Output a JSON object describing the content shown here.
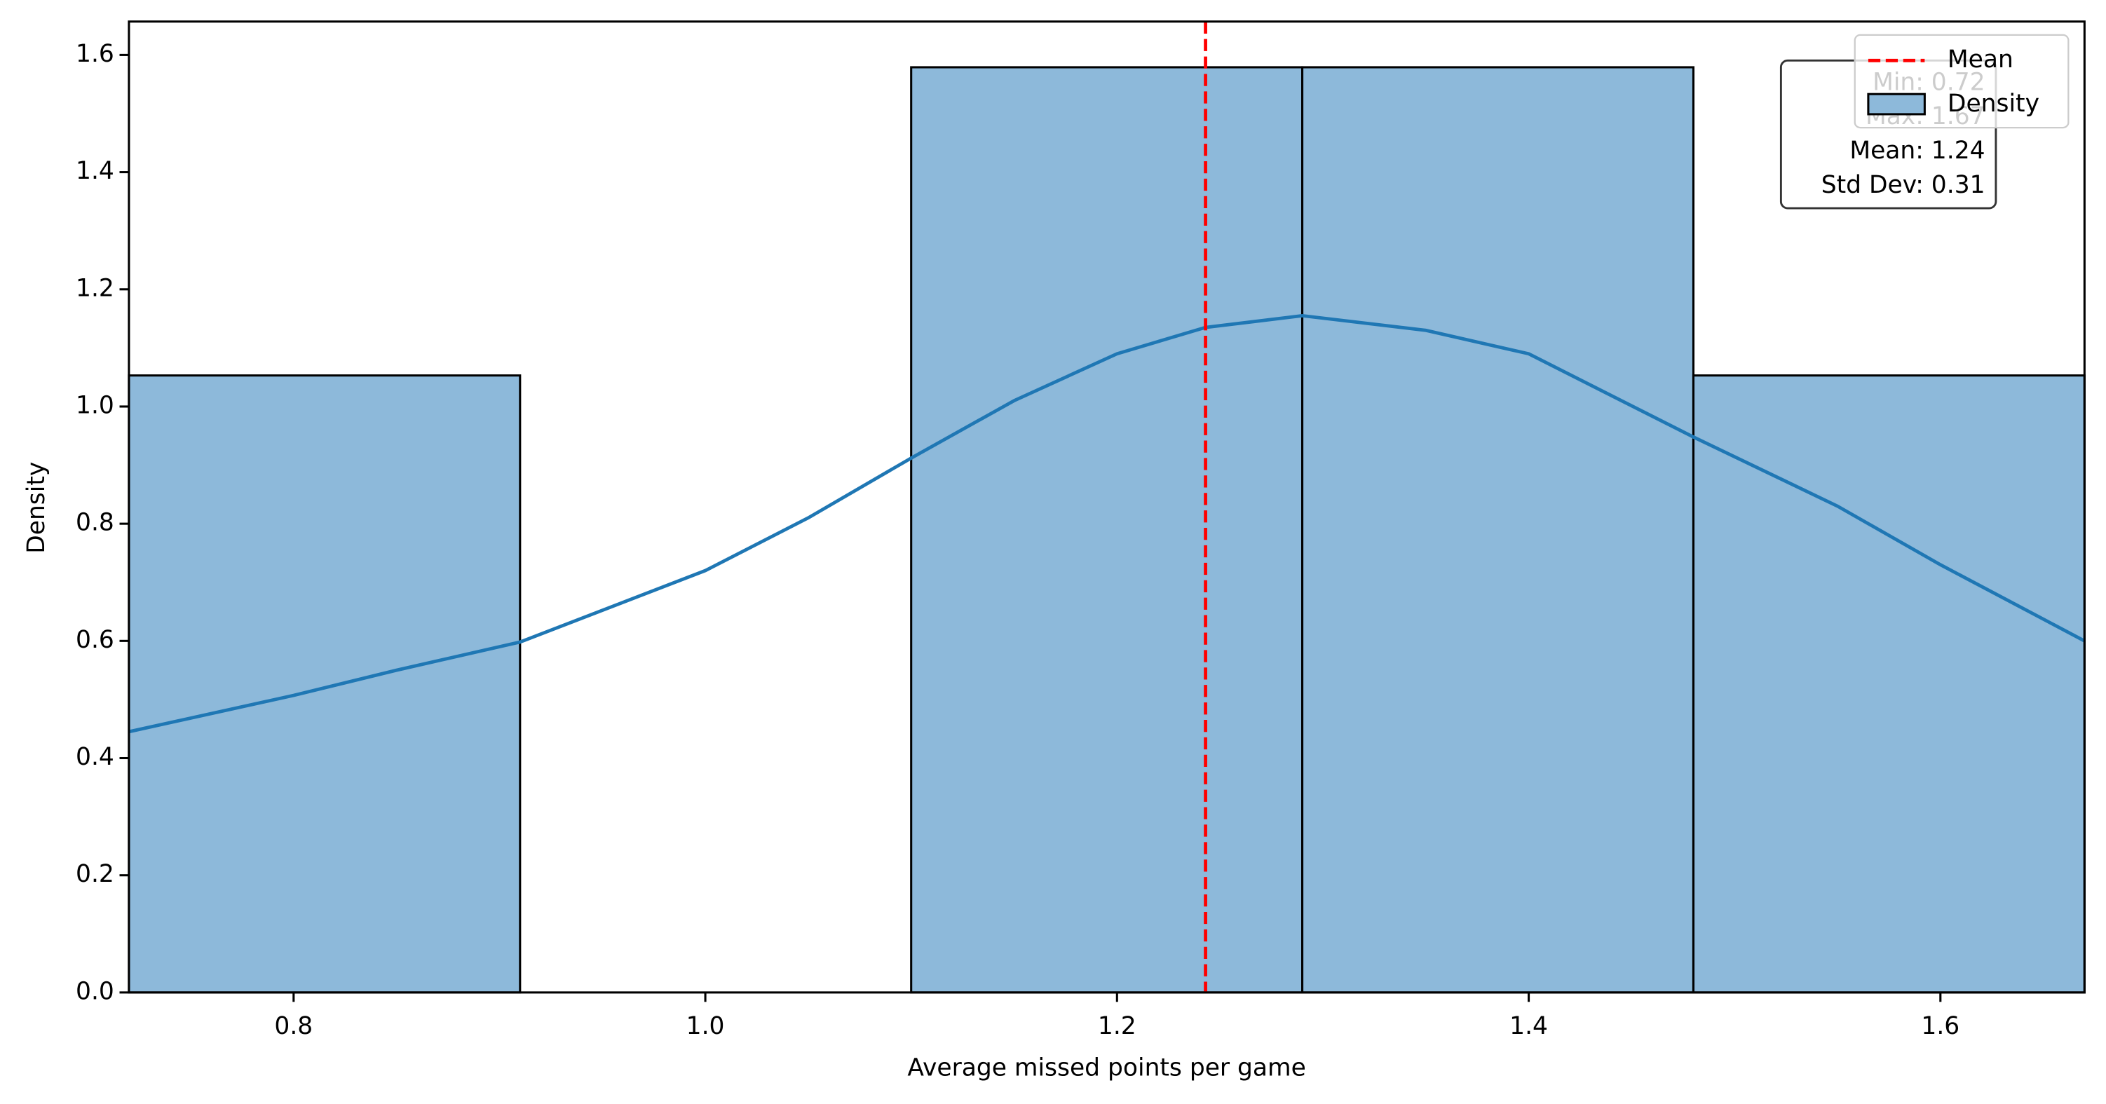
{
  "chart_data": {
    "type": "histogram",
    "xlabel": "Average missed points per game",
    "ylabel": "Density",
    "name": "Density",
    "bins": [
      0.72,
      0.91,
      1.1,
      1.29,
      1.48,
      1.67
    ],
    "values": [
      1.053,
      0,
      1.579,
      1.579,
      1.053
    ],
    "color": "#8db9da",
    "edgecolor": "#000000",
    "kde": {
      "color": "#1f77b4",
      "x": [
        0.72,
        0.8,
        0.85,
        0.91,
        1.0,
        1.05,
        1.1,
        1.15,
        1.2,
        1.243,
        1.29,
        1.35,
        1.4,
        1.48,
        1.55,
        1.6,
        1.67
      ],
      "values": [
        0.445,
        0.507,
        0.55,
        0.598,
        0.72,
        0.81,
        0.912,
        1.01,
        1.09,
        1.135,
        1.155,
        1.13,
        1.09,
        0.948,
        0.83,
        0.73,
        0.6
      ]
    },
    "mean_line": {
      "name": "Mean",
      "value": 1.243,
      "color": "#ff0000"
    },
    "stats_box": [
      "Min: 0.72",
      "Max: 1.67",
      "Mean: 1.24",
      "Std Dev: 0.31"
    ],
    "legend": "upper right",
    "xlim": [
      0.72,
      1.67
    ],
    "ylim": [
      0,
      1.657
    ],
    "xticks": [
      0.8,
      {
        "value": 1,
        "label": "1.0"
      },
      1.2,
      1.4,
      1.6
    ],
    "yticks": [
      {
        "value": 0,
        "label": "0.0"
      },
      0.2,
      0.4,
      0.6,
      0.8,
      {
        "value": 1,
        "label": "1.0"
      },
      1.2,
      1.4,
      1.6
    ]
  }
}
